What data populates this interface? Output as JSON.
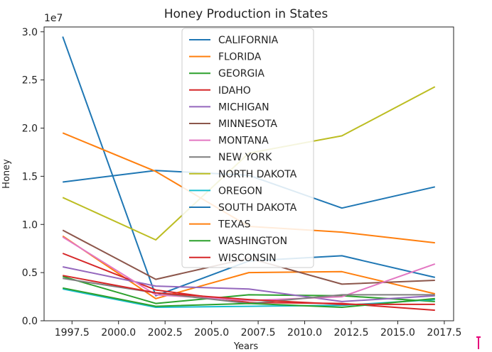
{
  "chart_data": {
    "type": "line",
    "title": "Honey Production in States",
    "xlabel": "Years",
    "ylabel": "Honey",
    "y_offset_label": "1e7",
    "xlim": [
      1996.0,
      2018.0
    ],
    "ylim": [
      0,
      30500000
    ],
    "xticks": [
      1997.5,
      2000.0,
      2002.5,
      2005.0,
      2007.5,
      2010.0,
      2012.5,
      2015.0,
      2017.5
    ],
    "xtick_labels": [
      "1997.5",
      "2000.0",
      "2002.5",
      "2005.0",
      "2007.5",
      "2010.0",
      "2012.5",
      "2015.0",
      "2017.5"
    ],
    "yticks": [
      0,
      5000000,
      10000000,
      15000000,
      20000000,
      25000000,
      30000000
    ],
    "ytick_labels": [
      "0.0",
      "0.5",
      "1.0",
      "1.5",
      "2.0",
      "2.5",
      "3.0"
    ],
    "x": [
      1997,
      2002,
      2007,
      2012,
      2017
    ],
    "legend_position": "top-center",
    "series": [
      {
        "name": "CALIFORNIA",
        "color": "#1f77b4",
        "values": [
          29500000,
          2600000,
          6200000,
          6750000,
          4500000
        ]
      },
      {
        "name": "FLORIDA",
        "color": "#ff7f0e",
        "values": [
          8800000,
          2300000,
          5000000,
          5100000,
          2800000
        ]
      },
      {
        "name": "GEORGIA",
        "color": "#2ca02c",
        "values": [
          4600000,
          1800000,
          2700000,
          2600000,
          2000000
        ]
      },
      {
        "name": "IDAHO",
        "color": "#d62728",
        "values": [
          7000000,
          3200000,
          1900000,
          1800000,
          1100000
        ]
      },
      {
        "name": "MICHIGAN",
        "color": "#9467bd",
        "values": [
          5600000,
          3600000,
          3300000,
          2000000,
          2600000
        ]
      },
      {
        "name": "MINNESOTA",
        "color": "#8c564b",
        "values": [
          9400000,
          4300000,
          6500000,
          3800000,
          4200000
        ]
      },
      {
        "name": "MONTANA",
        "color": "#e377c2",
        "values": [
          8700000,
          2700000,
          2100000,
          2500000,
          5900000
        ]
      },
      {
        "name": "NEW YORK",
        "color": "#7f7f7f",
        "values": [
          4400000,
          2900000,
          1800000,
          2700000,
          2700000
        ]
      },
      {
        "name": "NORTH DAKOTA",
        "color": "#bcbd22",
        "values": [
          12800000,
          8400000,
          17400000,
          19200000,
          24300000
        ]
      },
      {
        "name": "OREGON",
        "color": "#17becf",
        "values": [
          3300000,
          1400000,
          1500000,
          1600000,
          2200000
        ]
      },
      {
        "name": "SOUTH DAKOTA",
        "color": "#1f77b4",
        "values": [
          14400000,
          15600000,
          15100000,
          11700000,
          13900000
        ]
      },
      {
        "name": "TEXAS",
        "color": "#ff7f0e",
        "values": [
          19500000,
          15500000,
          9800000,
          9200000,
          8100000
        ]
      },
      {
        "name": "WASHINGTON",
        "color": "#2ca02c",
        "values": [
          3400000,
          1500000,
          1800000,
          1400000,
          2300000
        ]
      },
      {
        "name": "WISCONSIN",
        "color": "#d62728",
        "values": [
          4700000,
          2900000,
          2200000,
          1700000,
          1700000
        ]
      }
    ]
  }
}
